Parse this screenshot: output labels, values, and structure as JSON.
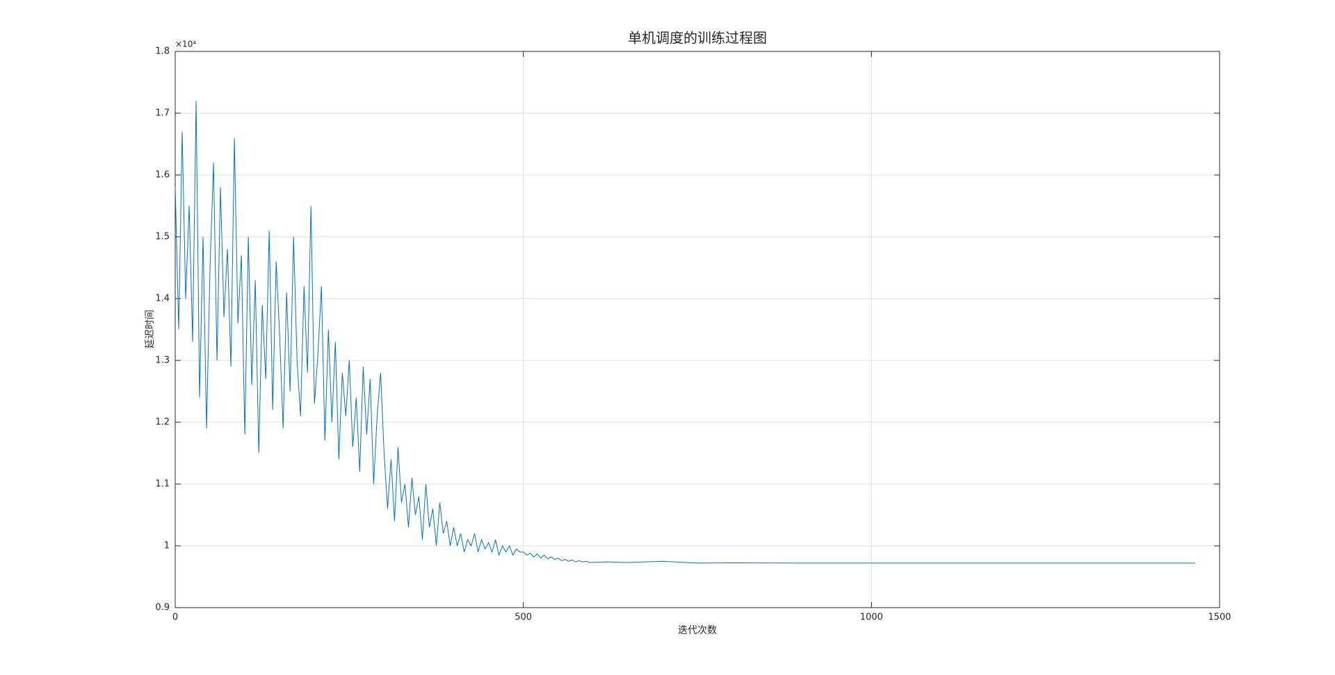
{
  "chart_data": {
    "type": "line",
    "title": "单机调度的训练过程图",
    "x_label": "迭代次数",
    "y_label": "延迟时间",
    "y_exponent": "×10⁴",
    "xlim": [
      0,
      1500
    ],
    "xticks": [
      0,
      500,
      1000,
      1500
    ],
    "ylim": [
      9000,
      18000
    ],
    "yticks": [
      {
        "value": 9000,
        "label": "0.9"
      },
      {
        "value": 10000,
        "label": "1"
      },
      {
        "value": 11000,
        "label": "1.1"
      },
      {
        "value": 12000,
        "label": "1.2"
      },
      {
        "value": 13000,
        "label": "1.3"
      },
      {
        "value": 14000,
        "label": "1.4"
      },
      {
        "value": 15000,
        "label": "1.5"
      },
      {
        "value": 16000,
        "label": "1.6"
      },
      {
        "value": 17000,
        "label": "1.7"
      },
      {
        "value": 18000,
        "label": "1.8"
      }
    ],
    "grid": true,
    "x": [
      0,
      5,
      10,
      15,
      20,
      25,
      30,
      35,
      40,
      45,
      50,
      55,
      60,
      65,
      70,
      75,
      80,
      85,
      90,
      95,
      100,
      105,
      110,
      115,
      120,
      125,
      130,
      135,
      140,
      145,
      150,
      155,
      160,
      165,
      170,
      175,
      180,
      185,
      190,
      195,
      200,
      205,
      210,
      215,
      220,
      225,
      230,
      235,
      240,
      245,
      250,
      255,
      260,
      265,
      270,
      275,
      280,
      285,
      290,
      295,
      300,
      305,
      310,
      315,
      320,
      325,
      330,
      335,
      340,
      345,
      350,
      355,
      360,
      365,
      370,
      375,
      380,
      385,
      390,
      395,
      400,
      405,
      410,
      415,
      420,
      425,
      430,
      435,
      440,
      445,
      450,
      455,
      460,
      465,
      470,
      475,
      480,
      485,
      490,
      495,
      500,
      505,
      510,
      515,
      520,
      525,
      530,
      535,
      540,
      545,
      550,
      555,
      560,
      565,
      570,
      575,
      580,
      585,
      590,
      595,
      620,
      650,
      700,
      750,
      800,
      900,
      1000,
      1100,
      1200,
      1300,
      1400,
      1465
    ],
    "series": [
      {
        "name": "延迟时间",
        "color": "#0072bd",
        "values": [
          15800,
          13500,
          16700,
          14000,
          15500,
          13300,
          17200,
          12400,
          15000,
          11900,
          14500,
          16200,
          13000,
          15800,
          13700,
          14800,
          12900,
          16600,
          13600,
          14700,
          11800,
          15000,
          12600,
          14300,
          11500,
          13900,
          12700,
          15100,
          12200,
          14600,
          13400,
          11900,
          14100,
          12500,
          15000,
          13000,
          12100,
          14200,
          12800,
          15500,
          12300,
          13100,
          14200,
          11700,
          13500,
          12000,
          13300,
          11400,
          12800,
          12100,
          13000,
          11600,
          12400,
          11200,
          12900,
          11800,
          12700,
          11000,
          12100,
          12800,
          11500,
          10600,
          11400,
          10400,
          11600,
          10700,
          11000,
          10300,
          11100,
          10500,
          10800,
          10100,
          11000,
          10300,
          10600,
          10000,
          10700,
          10200,
          10400,
          10000,
          10300,
          10000,
          10200,
          9900,
          10100,
          10000,
          10200,
          9900,
          10100,
          9950,
          10050,
          9900,
          10100,
          9850,
          10000,
          9900,
          10000,
          9850,
          9950,
          9900,
          9900,
          9850,
          9880,
          9820,
          9870,
          9800,
          9850,
          9790,
          9820,
          9780,
          9800,
          9760,
          9780,
          9750,
          9770,
          9740,
          9760,
          9740,
          9750,
          9730,
          9740,
          9730,
          9750,
          9720,
          9725,
          9720,
          9720,
          9720,
          9720,
          9720,
          9720,
          9720
        ]
      }
    ]
  }
}
